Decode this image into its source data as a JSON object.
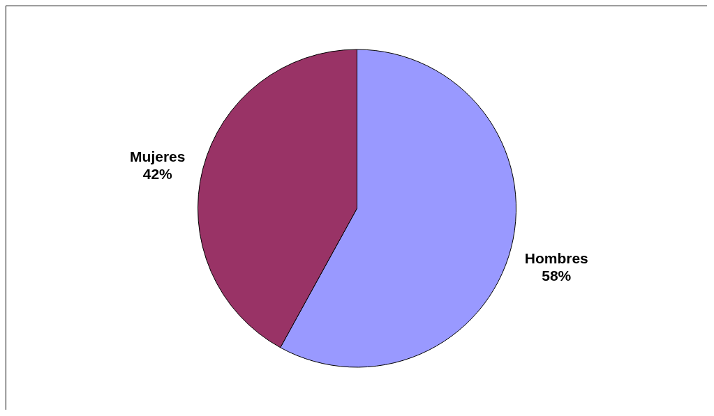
{
  "chart_data": {
    "type": "pie",
    "categories": [
      "Hombres",
      "Mujeres"
    ],
    "values": [
      58,
      42
    ],
    "colors": [
      "#9999ff",
      "#993366"
    ],
    "value_labels": [
      "58%",
      "42%"
    ],
    "legend": false
  }
}
